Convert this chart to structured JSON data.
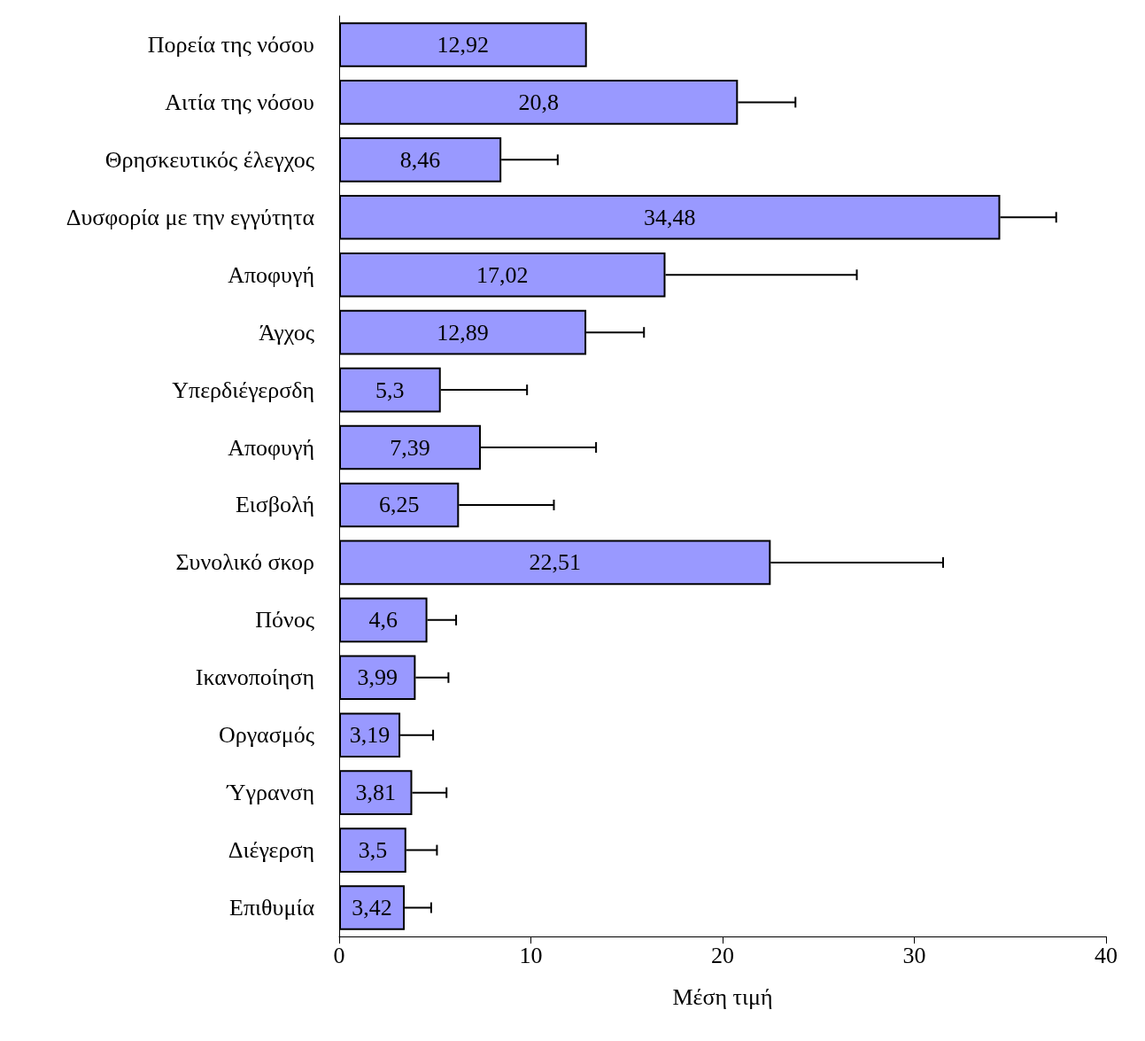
{
  "chart_data": {
    "type": "bar",
    "orientation": "horizontal",
    "xlabel": "Μέση τιμή",
    "categories": [
      "Πορεία της νόσου",
      "Αιτία της νόσου",
      "Θρησκευτικός έλεγχος",
      "Δυσφορία με την εγγύτητα",
      "Αποφυγή",
      "Άγχος",
      "Υπερδιέγερσδη",
      "Αποφυγή",
      "Εισβολή",
      "Συνολικό σκορ",
      "Πόνος",
      "Ικανοποίηση",
      "Οργασμός",
      "Ύγρανση",
      "Διέγερση",
      "Επιθυμία"
    ],
    "values": [
      12.92,
      20.8,
      8.46,
      34.48,
      17.02,
      12.89,
      5.3,
      7.39,
      6.25,
      22.51,
      4.6,
      3.99,
      3.19,
      3.81,
      3.5,
      3.42
    ],
    "errors": [
      null,
      [
        20.8,
        23.8
      ],
      [
        8.46,
        11.4
      ],
      [
        34.48,
        37.4
      ],
      [
        17.02,
        27.0
      ],
      [
        12.89,
        15.9
      ],
      [
        5.3,
        9.8
      ],
      [
        7.39,
        13.4
      ],
      [
        6.25,
        11.2
      ],
      [
        22.51,
        31.5
      ],
      [
        4.6,
        6.1
      ],
      [
        3.99,
        5.7
      ],
      [
        3.19,
        4.9
      ],
      [
        3.81,
        5.6
      ],
      [
        3.5,
        5.1
      ],
      [
        3.42,
        4.8
      ]
    ],
    "value_labels": [
      "12,92",
      "20,8",
      "8,46",
      "34,48",
      "17,02",
      "12,89",
      "5,3",
      "7,39",
      "6,25",
      "22,51",
      "4,6",
      "3,99",
      "3,19",
      "3,81",
      "3,5",
      "3,42"
    ],
    "color": "#9999ff",
    "xlim": [
      0,
      40
    ],
    "xticks": [
      0,
      10,
      20,
      30,
      40
    ],
    "grid": false
  }
}
